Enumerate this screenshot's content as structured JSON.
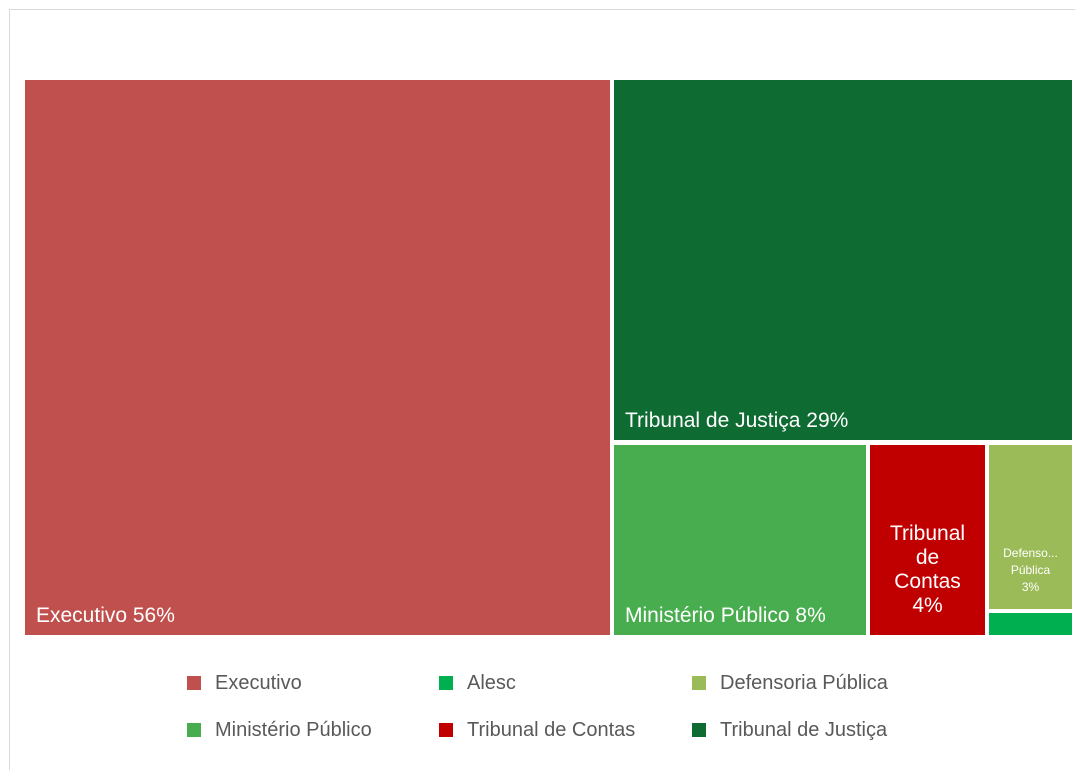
{
  "chart_data": {
    "type": "treemap",
    "title": "",
    "unit": "%",
    "items": [
      {
        "name": "Executivo",
        "value": 56,
        "label": [
          "Executivo 56%"
        ],
        "color": "#c0504d"
      },
      {
        "name": "Tribunal de Justiça",
        "value": 29,
        "label": [
          "Tribunal de Justiça 29%"
        ],
        "color": "#0e6b32"
      },
      {
        "name": "Ministério Público",
        "value": 8,
        "label": [
          "Ministério Público 8%"
        ],
        "color": "#48ad4e"
      },
      {
        "name": "Tribunal de Contas",
        "value": 4,
        "label": [
          "Tribunal",
          "de",
          "Contas",
          "4%"
        ],
        "color": "#c00000"
      },
      {
        "name": "Defensoria Pública",
        "value": 3,
        "label": [
          "Defenso...",
          "Pública",
          "3%"
        ],
        "color": "#9bbb59"
      },
      {
        "name": "Alesc",
        "value": 1,
        "label": [],
        "color": "#00b050"
      }
    ],
    "legend": {
      "placement": "bottom",
      "entries": [
        "Executivo",
        "Alesc",
        "Defensoria Pública",
        "Ministério Público",
        "Tribunal de Contas",
        "Tribunal de Justiça"
      ]
    }
  }
}
